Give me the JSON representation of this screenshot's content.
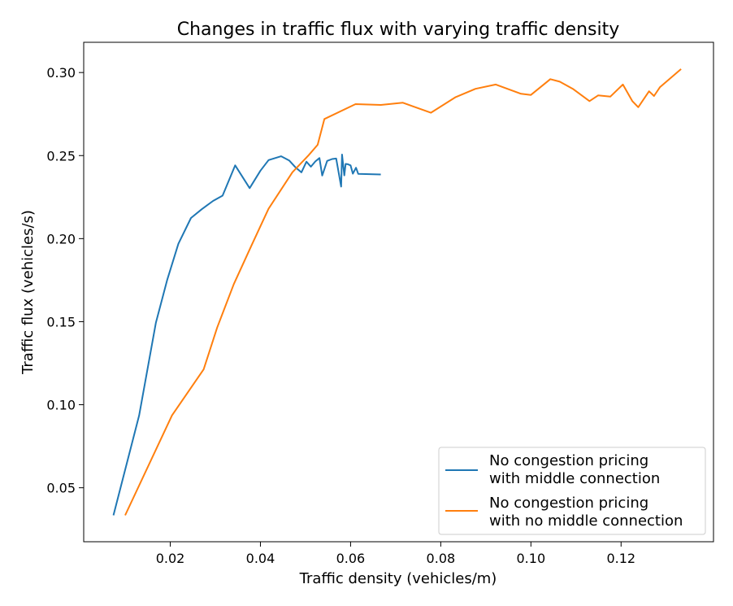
{
  "chart_data": {
    "type": "line",
    "title": "Changes in traffic flux with varying traffic density",
    "xlabel": "Traffic density (vehicles/m)",
    "ylabel": "Traffic flux (vehicles/s)",
    "xlim": [
      0.0008,
      0.1405
    ],
    "ylim": [
      0.0175,
      0.3182
    ],
    "xticks": [
      0.02,
      0.04,
      0.06,
      0.08,
      0.1,
      0.12
    ],
    "xtick_labels": [
      "0.02",
      "0.04",
      "0.06",
      "0.08",
      "0.10",
      "0.12"
    ],
    "yticks": [
      0.05,
      0.1,
      0.15,
      0.2,
      0.25,
      0.3
    ],
    "ytick_labels": [
      "0.05",
      "0.10",
      "0.15",
      "0.20",
      "0.25",
      "0.30"
    ],
    "grid": false,
    "legend_position": "lower right",
    "series": [
      {
        "name": "No congestion pricing\nwith middle connection",
        "color": "#1f77b4",
        "x": [
          0.0074,
          0.0131,
          0.0168,
          0.0193,
          0.0218,
          0.0246,
          0.027,
          0.0295,
          0.0316,
          0.0344,
          0.0376,
          0.04,
          0.0418,
          0.0446,
          0.0464,
          0.0478,
          0.0491,
          0.0502,
          0.0512,
          0.0522,
          0.0531,
          0.0537,
          0.0548,
          0.0559,
          0.0568,
          0.0579,
          0.0581,
          0.0586,
          0.0589,
          0.0594,
          0.06,
          0.0605,
          0.0612,
          0.0617,
          0.0667
        ],
        "y": [
          0.0334,
          0.0935,
          0.1493,
          0.1749,
          0.1969,
          0.2124,
          0.2177,
          0.2227,
          0.2259,
          0.2441,
          0.2304,
          0.2409,
          0.2473,
          0.2496,
          0.247,
          0.2429,
          0.2399,
          0.2463,
          0.2433,
          0.2465,
          0.2485,
          0.238,
          0.2468,
          0.2479,
          0.2482,
          0.2313,
          0.2506,
          0.2381,
          0.245,
          0.2448,
          0.2441,
          0.2391,
          0.2427,
          0.239,
          0.2386
        ]
      },
      {
        "name": "No congestion pricing\nwith no middle connection",
        "color": "#ff7f0e",
        "x": [
          0.01,
          0.0204,
          0.0274,
          0.0304,
          0.0341,
          0.038,
          0.0418,
          0.0471,
          0.0507,
          0.0527,
          0.0542,
          0.0611,
          0.0667,
          0.0716,
          0.0778,
          0.0833,
          0.0877,
          0.0922,
          0.0978,
          0.1,
          0.1043,
          0.1064,
          0.1093,
          0.113,
          0.1149,
          0.1176,
          0.1204,
          0.1225,
          0.1238,
          0.1262,
          0.1273,
          0.1286,
          0.1333
        ],
        "y": [
          0.0334,
          0.0936,
          0.1213,
          0.1464,
          0.1726,
          0.1958,
          0.218,
          0.24,
          0.2502,
          0.2565,
          0.272,
          0.281,
          0.2805,
          0.2818,
          0.2758,
          0.2852,
          0.2902,
          0.2928,
          0.2872,
          0.2865,
          0.296,
          0.2945,
          0.2902,
          0.2828,
          0.2862,
          0.2855,
          0.2928,
          0.2828,
          0.2791,
          0.2887,
          0.2859,
          0.2911,
          0.3021
        ]
      }
    ]
  }
}
